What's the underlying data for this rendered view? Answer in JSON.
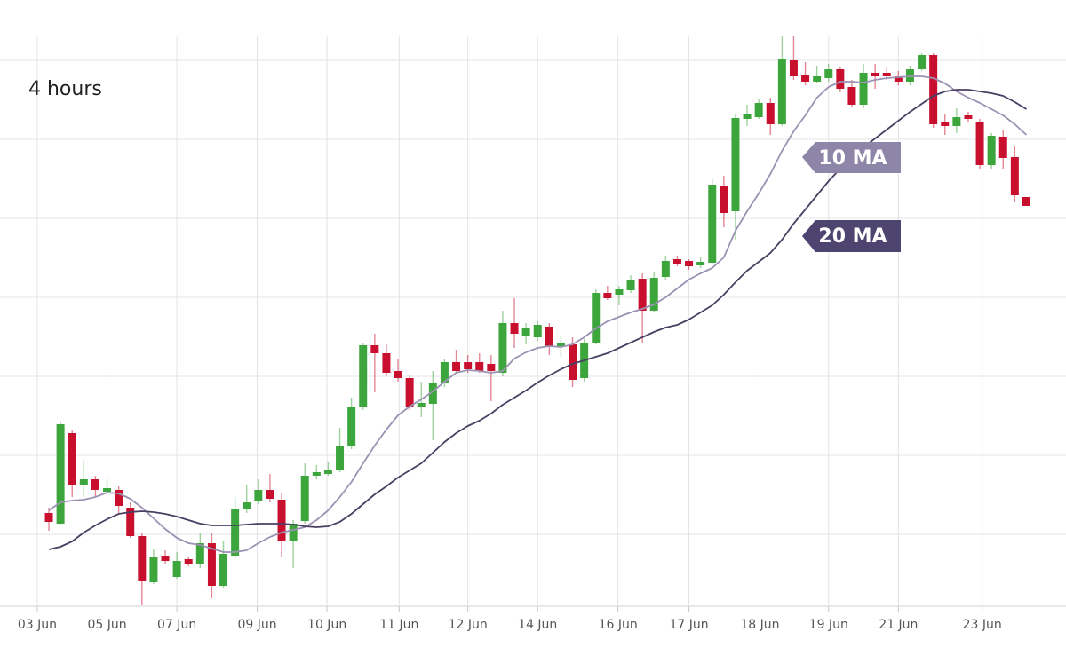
{
  "chart_data": {
    "type": "candlestick",
    "title": "4 hours",
    "x": [
      1,
      2,
      3,
      4,
      5,
      6,
      7,
      8,
      9,
      10,
      11,
      12,
      13,
      14,
      15,
      16,
      17,
      18,
      19,
      20,
      21,
      22,
      23,
      24,
      25,
      26,
      27,
      28,
      29,
      30,
      31,
      32,
      33,
      34,
      35,
      36,
      37,
      38,
      39,
      40,
      41,
      42,
      43,
      44,
      45,
      46,
      47,
      48,
      49,
      50,
      51,
      52,
      53,
      54,
      55,
      56,
      57,
      58,
      59,
      60,
      61,
      62,
      63,
      64,
      65,
      66,
      67,
      68,
      69,
      70,
      71,
      72,
      73,
      74,
      75,
      76,
      77,
      78,
      79,
      80,
      81,
      82,
      83,
      84,
      85
    ],
    "open": [
      105,
      93,
      195,
      137,
      143,
      129,
      131,
      111,
      79,
      27,
      57,
      33,
      53,
      47,
      71,
      23,
      57,
      109,
      119,
      131,
      120,
      73,
      96,
      147,
      149,
      153,
      181,
      225,
      294,
      285,
      265,
      257,
      225,
      228,
      251,
      275,
      275,
      275,
      273,
      263,
      319,
      305,
      303,
      315,
      293,
      295,
      257,
      297,
      353,
      351,
      356,
      369,
      333,
      371,
      391,
      389,
      384,
      387,
      473,
      445,
      549,
      551,
      567,
      543,
      615,
      598,
      591,
      595,
      605,
      585,
      565,
      601,
      601,
      597,
      591,
      605,
      621,
      545,
      541,
      553,
      546,
      497,
      529,
      506,
      461
    ],
    "high": [
      111,
      207,
      199,
      165,
      147,
      143,
      135,
      117,
      83,
      65,
      63,
      61,
      55,
      83,
      83,
      73,
      123,
      137,
      143,
      149,
      127,
      97,
      161,
      159,
      163,
      201,
      235,
      297,
      307,
      295,
      279,
      261,
      253,
      265,
      279,
      289,
      283,
      285,
      283,
      333,
      347,
      319,
      321,
      319,
      305,
      303,
      301,
      357,
      361,
      361,
      373,
      375,
      377,
      395,
      395,
      391,
      393,
      481,
      485,
      555,
      565,
      571,
      573,
      643,
      643,
      613,
      609,
      611,
      607,
      593,
      611,
      611,
      607,
      603,
      609,
      623,
      623,
      555,
      561,
      557,
      549,
      533,
      537,
      519,
      461
    ],
    "low": [
      85,
      91,
      123,
      123,
      123,
      127,
      105,
      77,
      1,
      25,
      47,
      31,
      45,
      43,
      9,
      21,
      53,
      105,
      115,
      117,
      55,
      43,
      93,
      143,
      147,
      151,
      177,
      221,
      241,
      259,
      253,
      221,
      213,
      187,
      247,
      263,
      263,
      263,
      231,
      259,
      291,
      295,
      299,
      283,
      281,
      247,
      253,
      295,
      345,
      339,
      353,
      297,
      331,
      367,
      383,
      379,
      381,
      385,
      427,
      413,
      541,
      549,
      531,
      541,
      593,
      587,
      589,
      591,
      579,
      563,
      561,
      583,
      593,
      587,
      587,
      603,
      539,
      531,
      533,
      545,
      493,
      493,
      493,
      455,
      451
    ],
    "close": [
      95,
      205,
      137,
      143,
      131,
      133,
      113,
      79,
      28,
      56,
      51,
      51,
      47,
      71,
      23,
      59,
      110,
      117,
      131,
      121,
      73,
      93,
      147,
      151,
      153,
      181,
      225,
      294,
      285,
      263,
      257,
      225,
      229,
      251,
      275,
      265,
      267,
      265,
      265,
      319,
      307,
      313,
      317,
      293,
      297,
      255,
      297,
      353,
      347,
      357,
      368,
      333,
      370,
      389,
      386,
      383,
      388,
      475,
      443,
      550,
      555,
      567,
      543,
      617,
      597,
      591,
      597,
      605,
      583,
      565,
      601,
      597,
      597,
      591,
      605,
      621,
      543,
      541,
      551,
      549,
      497,
      530,
      505,
      463,
      451
    ],
    "up_color": "#3ca63c",
    "down_color": "#c8102e",
    "series": [
      {
        "name": "10 MA",
        "color": "#9b92b3",
        "values": [
          108,
          117,
          119,
          120,
          123,
          128,
          127,
          121,
          111,
          99,
          87,
          77,
          71,
          69,
          65,
          61,
          61,
          63,
          71,
          78,
          83,
          86,
          89,
          97,
          108,
          123,
          140,
          161,
          181,
          199,
          215,
          225,
          233,
          242,
          253,
          263,
          266,
          265,
          263,
          265,
          279,
          286,
          291,
          293,
          292,
          295,
          303,
          313,
          321,
          326,
          331,
          335,
          340,
          348,
          358,
          368,
          375,
          381,
          393,
          423,
          445,
          465,
          487,
          513,
          535,
          553,
          573,
          585,
          591,
          591,
          590,
          593,
          595,
          596,
          597,
          597,
          595,
          589,
          580,
          573,
          567,
          560,
          553,
          543,
          531
        ]
      },
      {
        "name": "20 MA",
        "color": "#4a3f63",
        "values": [
          64,
          67,
          73,
          83,
          91,
          98,
          104,
          106,
          107,
          106,
          104,
          101,
          97,
          93,
          91,
          91,
          91,
          92,
          93,
          93,
          93,
          92,
          90,
          89,
          90,
          95,
          104,
          115,
          126,
          135,
          145,
          153,
          161,
          173,
          185,
          195,
          203,
          209,
          217,
          227,
          235,
          243,
          252,
          260,
          267,
          273,
          277,
          281,
          285,
          291,
          297,
          303,
          309,
          314,
          317,
          323,
          331,
          339,
          351,
          365,
          378,
          388,
          398,
          413,
          431,
          447,
          463,
          479,
          493,
          505,
          517,
          527,
          537,
          547,
          557,
          566,
          575,
          580,
          582,
          582,
          580,
          578,
          575,
          568,
          560
        ]
      }
    ],
    "xlim": [
      -3.2,
      88.4
    ],
    "xticks": [
      {
        "value": 0,
        "label": "03 Jun"
      },
      {
        "value": 6.0,
        "label": "05 Jun"
      },
      {
        "value": 12.0,
        "label": "07 Jun"
      },
      {
        "value": 18.9,
        "label": "09 Jun"
      },
      {
        "value": 24.9,
        "label": "10 Jun"
      },
      {
        "value": 31.1,
        "label": "11 Jun"
      },
      {
        "value": 37.0,
        "label": "12 Jun"
      },
      {
        "value": 43.0,
        "label": "14 Jun"
      },
      {
        "value": 49.9,
        "label": "16 Jun"
      },
      {
        "value": 56.0,
        "label": "17 Jun"
      },
      {
        "value": 62.1,
        "label": "18 Jun"
      },
      {
        "value": 68.0,
        "label": "19 Jun"
      },
      {
        "value": 74.0,
        "label": "21 Jun"
      },
      {
        "value": 81.2,
        "label": "23 Jun"
      }
    ],
    "ylim": [
      0,
      643
    ],
    "yticks": [
      81,
      170,
      259,
      348,
      437,
      526,
      615
    ],
    "grid": true
  }
}
